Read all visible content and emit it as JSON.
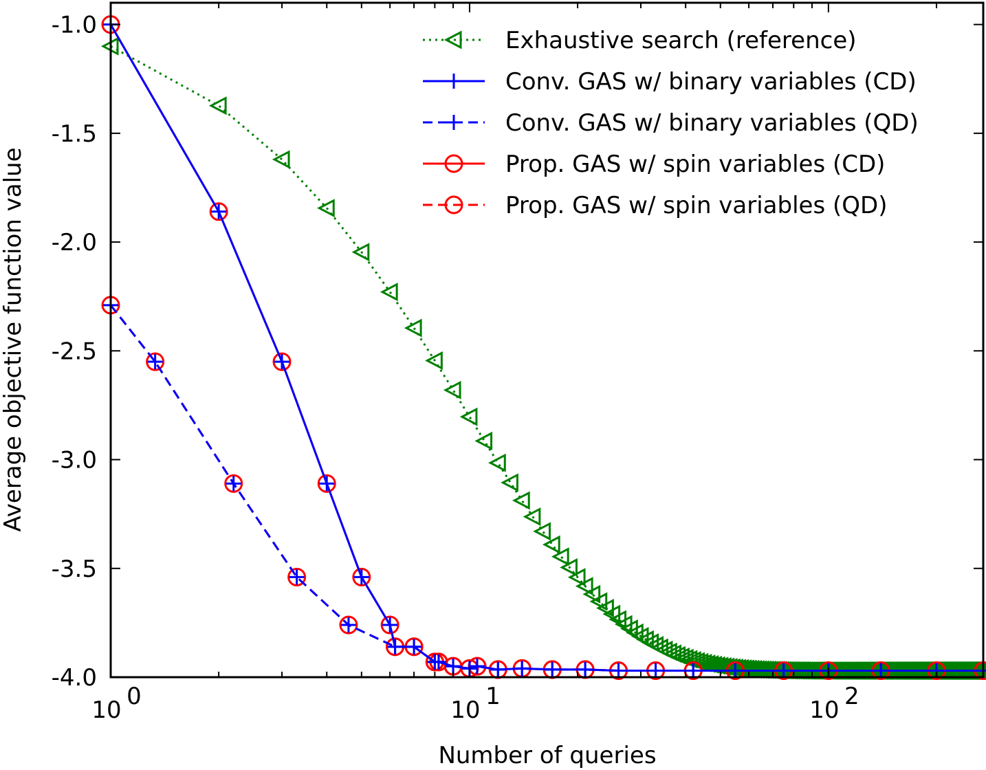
{
  "chart_data": {
    "type": "line",
    "title": "",
    "xlabel": "Number of queries",
    "ylabel": "Average objective function value",
    "xscale": "log",
    "xlim": [
      1,
      270
    ],
    "ylim": [
      -4.0,
      -0.9
    ],
    "xticks": [
      {
        "value": 1,
        "base": "10",
        "exp": "0"
      },
      {
        "value": 10,
        "base": "10",
        "exp": "1"
      },
      {
        "value": 100,
        "base": "10",
        "exp": "2"
      }
    ],
    "yticks": [
      {
        "value": -1.0,
        "label": "-1.0"
      },
      {
        "value": -1.5,
        "label": "-1.5"
      },
      {
        "value": -2.0,
        "label": "-2.0"
      },
      {
        "value": -2.5,
        "label": "-2.5"
      },
      {
        "value": -3.0,
        "label": "-3.0"
      },
      {
        "value": -3.5,
        "label": "-3.5"
      },
      {
        "value": -4.0,
        "label": "-4.0"
      }
    ],
    "legend_position": "top-right",
    "series": [
      {
        "name": "Exhaustive search (reference)",
        "color": "#008000",
        "line": "dotted",
        "marker": "triangle-left",
        "generator": {
          "kind": "exhaustive",
          "n_max": 270,
          "y_min": -3.97,
          "y0": -1.1,
          "k": 0.1
        }
      },
      {
        "name": "Conv. GAS w/ binary variables (CD)",
        "color": "#0000ff",
        "line": "solid",
        "marker": "plus",
        "x": [
          1,
          2,
          3,
          4,
          5,
          6,
          6.2,
          7,
          8,
          8.2,
          9,
          10,
          10.5,
          12,
          14,
          17,
          21,
          26,
          33,
          42,
          55,
          75,
          100,
          140,
          200,
          270
        ],
        "y": [
          -1.0,
          -1.86,
          -2.55,
          -3.11,
          -3.54,
          -3.76,
          -3.86,
          -3.86,
          -3.93,
          -3.93,
          -3.95,
          -3.96,
          -3.95,
          -3.965,
          -3.96,
          -3.965,
          -3.965,
          -3.97,
          -3.97,
          -3.97,
          -3.97,
          -3.97,
          -3.97,
          -3.97,
          -3.97,
          -3.97
        ]
      },
      {
        "name": "Conv. GAS w/ binary variables (QD)",
        "color": "#0000ff",
        "line": "dashed",
        "marker": "plus",
        "x": [
          1,
          1.33,
          2.2,
          3.3,
          4.6,
          6.2,
          7,
          8,
          8.2,
          9,
          10,
          10.5,
          12,
          14,
          17,
          21,
          26,
          33,
          42,
          55,
          75,
          100,
          140,
          200,
          270
        ],
        "y": [
          -2.29,
          -2.55,
          -3.11,
          -3.54,
          -3.76,
          -3.86,
          -3.86,
          -3.93,
          -3.93,
          -3.95,
          -3.96,
          -3.95,
          -3.965,
          -3.96,
          -3.965,
          -3.965,
          -3.97,
          -3.97,
          -3.97,
          -3.97,
          -3.97,
          -3.97,
          -3.97,
          -3.97,
          -3.97
        ]
      },
      {
        "name": "Prop. GAS w/ spin variables (CD)",
        "color": "#ff0000",
        "line": "solid",
        "marker": "circle",
        "x": [
          1,
          2,
          3,
          4,
          5,
          6,
          6.2,
          7,
          8,
          8.2,
          9,
          10,
          10.5,
          12,
          14,
          17,
          21,
          26,
          33,
          42,
          55,
          75,
          100,
          140,
          200,
          270
        ],
        "y": [
          -1.0,
          -1.86,
          -2.55,
          -3.11,
          -3.54,
          -3.76,
          -3.86,
          -3.86,
          -3.93,
          -3.93,
          -3.95,
          -3.96,
          -3.95,
          -3.965,
          -3.96,
          -3.965,
          -3.965,
          -3.97,
          -3.97,
          -3.97,
          -3.97,
          -3.97,
          -3.97,
          -3.97,
          -3.97,
          -3.97
        ]
      },
      {
        "name": "Prop. GAS w/ spin variables (QD)",
        "color": "#ff0000",
        "line": "dashed",
        "marker": "circle",
        "x": [
          1,
          1.33,
          2.2,
          3.3,
          4.6,
          6.2,
          7,
          8,
          8.2,
          9,
          10,
          10.5,
          12,
          14,
          17,
          21,
          26,
          33,
          42,
          55,
          75,
          100,
          140,
          200,
          270
        ],
        "y": [
          -2.29,
          -2.55,
          -3.11,
          -3.54,
          -3.76,
          -3.86,
          -3.86,
          -3.93,
          -3.93,
          -3.95,
          -3.96,
          -3.95,
          -3.965,
          -3.96,
          -3.965,
          -3.965,
          -3.97,
          -3.97,
          -3.97,
          -3.97,
          -3.97,
          -3.97,
          -3.97,
          -3.97,
          -3.97
        ]
      }
    ]
  }
}
